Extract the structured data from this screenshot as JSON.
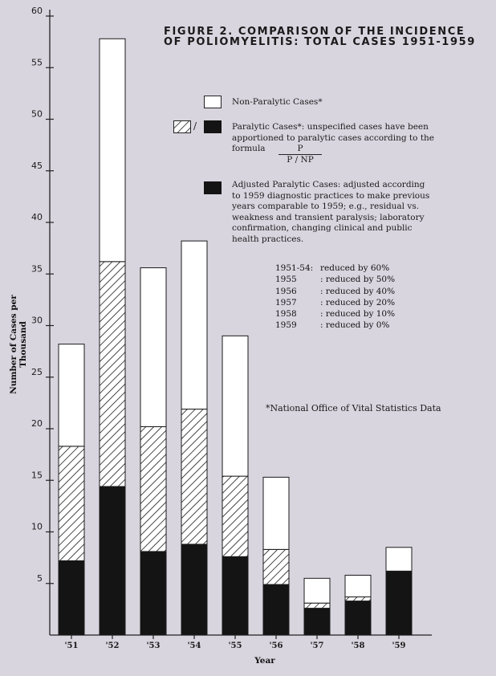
{
  "title": {
    "line1": "FIGURE 2. COMPARISON OF THE INCIDENCE",
    "line2": "OF POLIOMYELITIS: TOTAL CASES 1951-1959"
  },
  "legend": {
    "nonparalytic": "Non-Paralytic Cases*",
    "paralytic_plus": "/",
    "paralytic_1": "Paralytic Cases*: unspecified cases have been",
    "paralytic_2": "apportioned to paralytic cases according to the",
    "paralytic_3": "formula",
    "formula_num": "P",
    "formula_den": "P / NP",
    "adjusted_1": "Adjusted Paralytic Cases: adjusted according",
    "adjusted_2": "to 1959 diagnostic practices to make previous",
    "adjusted_3": "years comparable to 1959; e.g., residual vs.",
    "adjusted_4": "weakness and transient paralysis; laboratory",
    "adjusted_5": "confirmation, changing clinical and public",
    "adjusted_6": "health practices."
  },
  "reductions": [
    {
      "years": "1951-54:",
      "text": "reduced by 60%"
    },
    {
      "years": "1955",
      "text": ": reduced by 50%"
    },
    {
      "years": "1956",
      "text": ": reduced by 40%"
    },
    {
      "years": "1957",
      "text": ": reduced by 20%"
    },
    {
      "years": "1958",
      "text": ": reduced by 10%"
    },
    {
      "years": "1959",
      "text": ": reduced by 0%"
    }
  ],
  "source_note": "*National Office of Vital Statistics Data",
  "colors": {
    "background": "#d9d5df",
    "adjusted_paralytic": "#141414",
    "paralytic_hatch": "#1a1a1a",
    "nonparalytic": "#ffffff"
  },
  "chart_data": {
    "type": "bar",
    "stacked": true,
    "categories": [
      "'51",
      "'52",
      "'53",
      "'54",
      "'55",
      "'56",
      "'57",
      "'58",
      "'59"
    ],
    "series": [
      {
        "name": "Adjusted Paralytic Cases",
        "values": [
          7.2,
          14.4,
          8.1,
          8.8,
          7.6,
          4.9,
          2.6,
          3.3,
          6.2
        ]
      },
      {
        "name": "Paralytic Cases",
        "values": [
          11.1,
          21.8,
          12.1,
          13.1,
          7.8,
          3.4,
          0.5,
          0.4,
          0.0
        ]
      },
      {
        "name": "Non-Paralytic Cases",
        "values": [
          9.9,
          21.6,
          15.4,
          16.3,
          13.6,
          7.0,
          2.4,
          2.1,
          2.3
        ]
      }
    ],
    "totals": [
      28.2,
      57.8,
      35.6,
      38.2,
      29.0,
      15.3,
      5.5,
      5.8,
      8.5
    ],
    "ylabel": "Number of Cases per Thousand",
    "xlabel": "Year",
    "ylim": [
      0,
      60
    ],
    "yticks": [
      5,
      10,
      15,
      20,
      25,
      30,
      35,
      40,
      45,
      50,
      55,
      60
    ],
    "grid": false
  }
}
